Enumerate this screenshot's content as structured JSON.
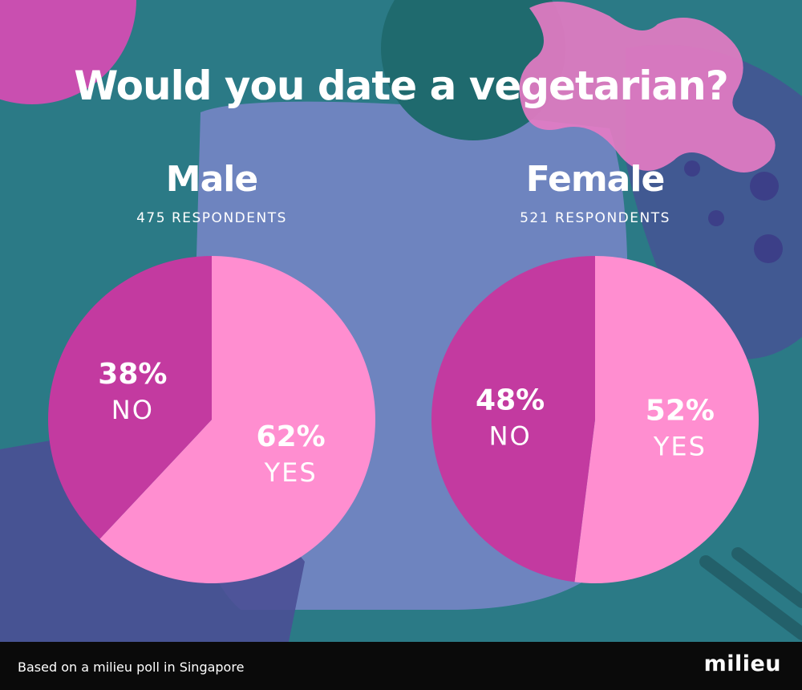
{
  "title": "Would you date a vegetarian?",
  "colors": {
    "yes": "#ff8ed0",
    "no": "#c33aa0",
    "background": "#2b7a86",
    "footer": "#0a0a0a"
  },
  "footer": {
    "note": "Based on a milieu poll in Singapore",
    "brand": "milieu"
  },
  "chart_data": [
    {
      "type": "pie",
      "title": "Male",
      "subtitle": "475 RESPONDENTS",
      "slices": [
        {
          "label": "YES",
          "value": 62,
          "display": "62%",
          "color": "#ff8ed0"
        },
        {
          "label": "NO",
          "value": 38,
          "display": "38%",
          "color": "#c33aa0"
        }
      ]
    },
    {
      "type": "pie",
      "title": "Female",
      "subtitle": "521 RESPONDENTS",
      "slices": [
        {
          "label": "YES",
          "value": 52,
          "display": "52%",
          "color": "#ff8ed0"
        },
        {
          "label": "NO",
          "value": 48,
          "display": "48%",
          "color": "#c33aa0"
        }
      ]
    }
  ]
}
